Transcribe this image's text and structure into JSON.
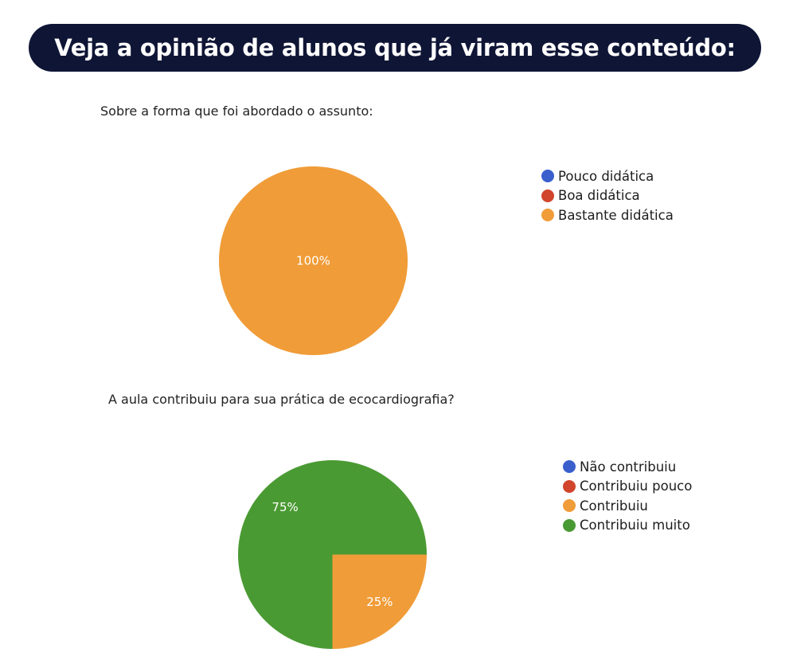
{
  "header": {
    "title": "Veja a opinião de alunos que já viram esse conteúdo:"
  },
  "colors": {
    "banner_bg": "#0f1535",
    "blue": "#3a5fcd",
    "red": "#d0452b",
    "orange": "#f09c38",
    "green": "#4a9a33"
  },
  "chart_data": [
    {
      "type": "pie",
      "title": "Sobre a forma que foi abordado o assunto:",
      "legend_position": "right",
      "categories": [
        "Pouco didática",
        "Boa didática",
        "Bastante didática"
      ],
      "values": [
        0,
        0,
        100
      ],
      "labels": [
        "",
        "",
        "100%"
      ],
      "colors": [
        "#3a5fcd",
        "#d0452b",
        "#f09c38"
      ]
    },
    {
      "type": "pie",
      "title": "A aula contribuiu para sua prática de ecocardiografia?",
      "legend_position": "right",
      "categories": [
        "Não contribuiu",
        "Contribuiu pouco",
        "Contribuiu",
        "Contribuiu muito"
      ],
      "values": [
        0,
        0,
        25,
        75
      ],
      "labels": [
        "",
        "",
        "25%",
        "75%"
      ],
      "colors": [
        "#3a5fcd",
        "#d0452b",
        "#f09c38",
        "#4a9a33"
      ]
    }
  ]
}
